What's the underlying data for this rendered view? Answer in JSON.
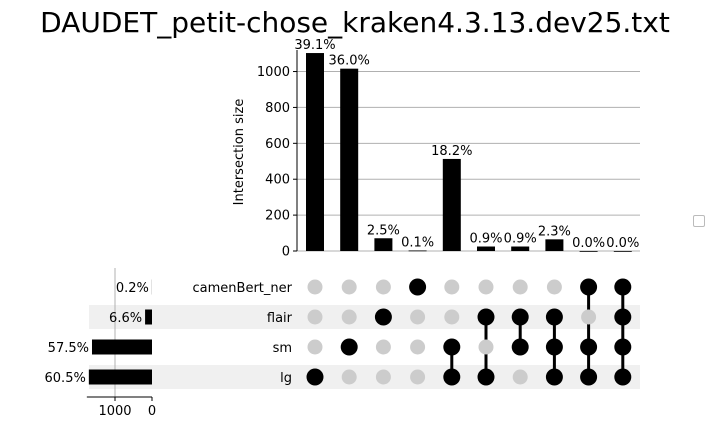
{
  "title": "DAUDET_petit-chose_kraken4.3.13.dev25.txt",
  "chart_data": {
    "type": "upset",
    "title": "DAUDET_petit-chose_kraken4.3.13.dev25.txt",
    "ylabel": "Intersection size",
    "ylim": [
      0,
      1120
    ],
    "yticks": [
      0,
      200,
      400,
      600,
      800,
      1000
    ],
    "sets": [
      "camenBert_ner",
      "flair",
      "sm",
      "lg"
    ],
    "set_sizes": [
      3,
      187,
      1622,
      1707
    ],
    "set_percent_labels": [
      "0.2%",
      "6.6%",
      "57.5%",
      "60.5%"
    ],
    "set_size_ticks": [
      1000,
      0
    ],
    "intersections": [
      {
        "members": [
          "lg"
        ],
        "value": 1103,
        "label": "39.1%"
      },
      {
        "members": [
          "sm"
        ],
        "value": 1016,
        "label": "36.0%"
      },
      {
        "members": [
          "flair"
        ],
        "value": 71,
        "label": "2.5%"
      },
      {
        "members": [
          "camenBert_ner"
        ],
        "value": 3,
        "label": "0.1%"
      },
      {
        "members": [
          "sm",
          "lg"
        ],
        "value": 513,
        "label": "18.2%"
      },
      {
        "members": [
          "flair",
          "lg"
        ],
        "value": 25,
        "label": "0.9%"
      },
      {
        "members": [
          "flair",
          "sm"
        ],
        "value": 25,
        "label": "0.9%"
      },
      {
        "members": [
          "flair",
          "sm",
          "lg"
        ],
        "value": 65,
        "label": "2.3%"
      },
      {
        "members": [
          "camenBert_ner",
          "sm",
          "lg"
        ],
        "value": 0,
        "label": "0.0%"
      },
      {
        "members": [
          "camenBert_ner",
          "flair",
          "sm",
          "lg"
        ],
        "value": 0,
        "label": "0.0%"
      }
    ]
  }
}
